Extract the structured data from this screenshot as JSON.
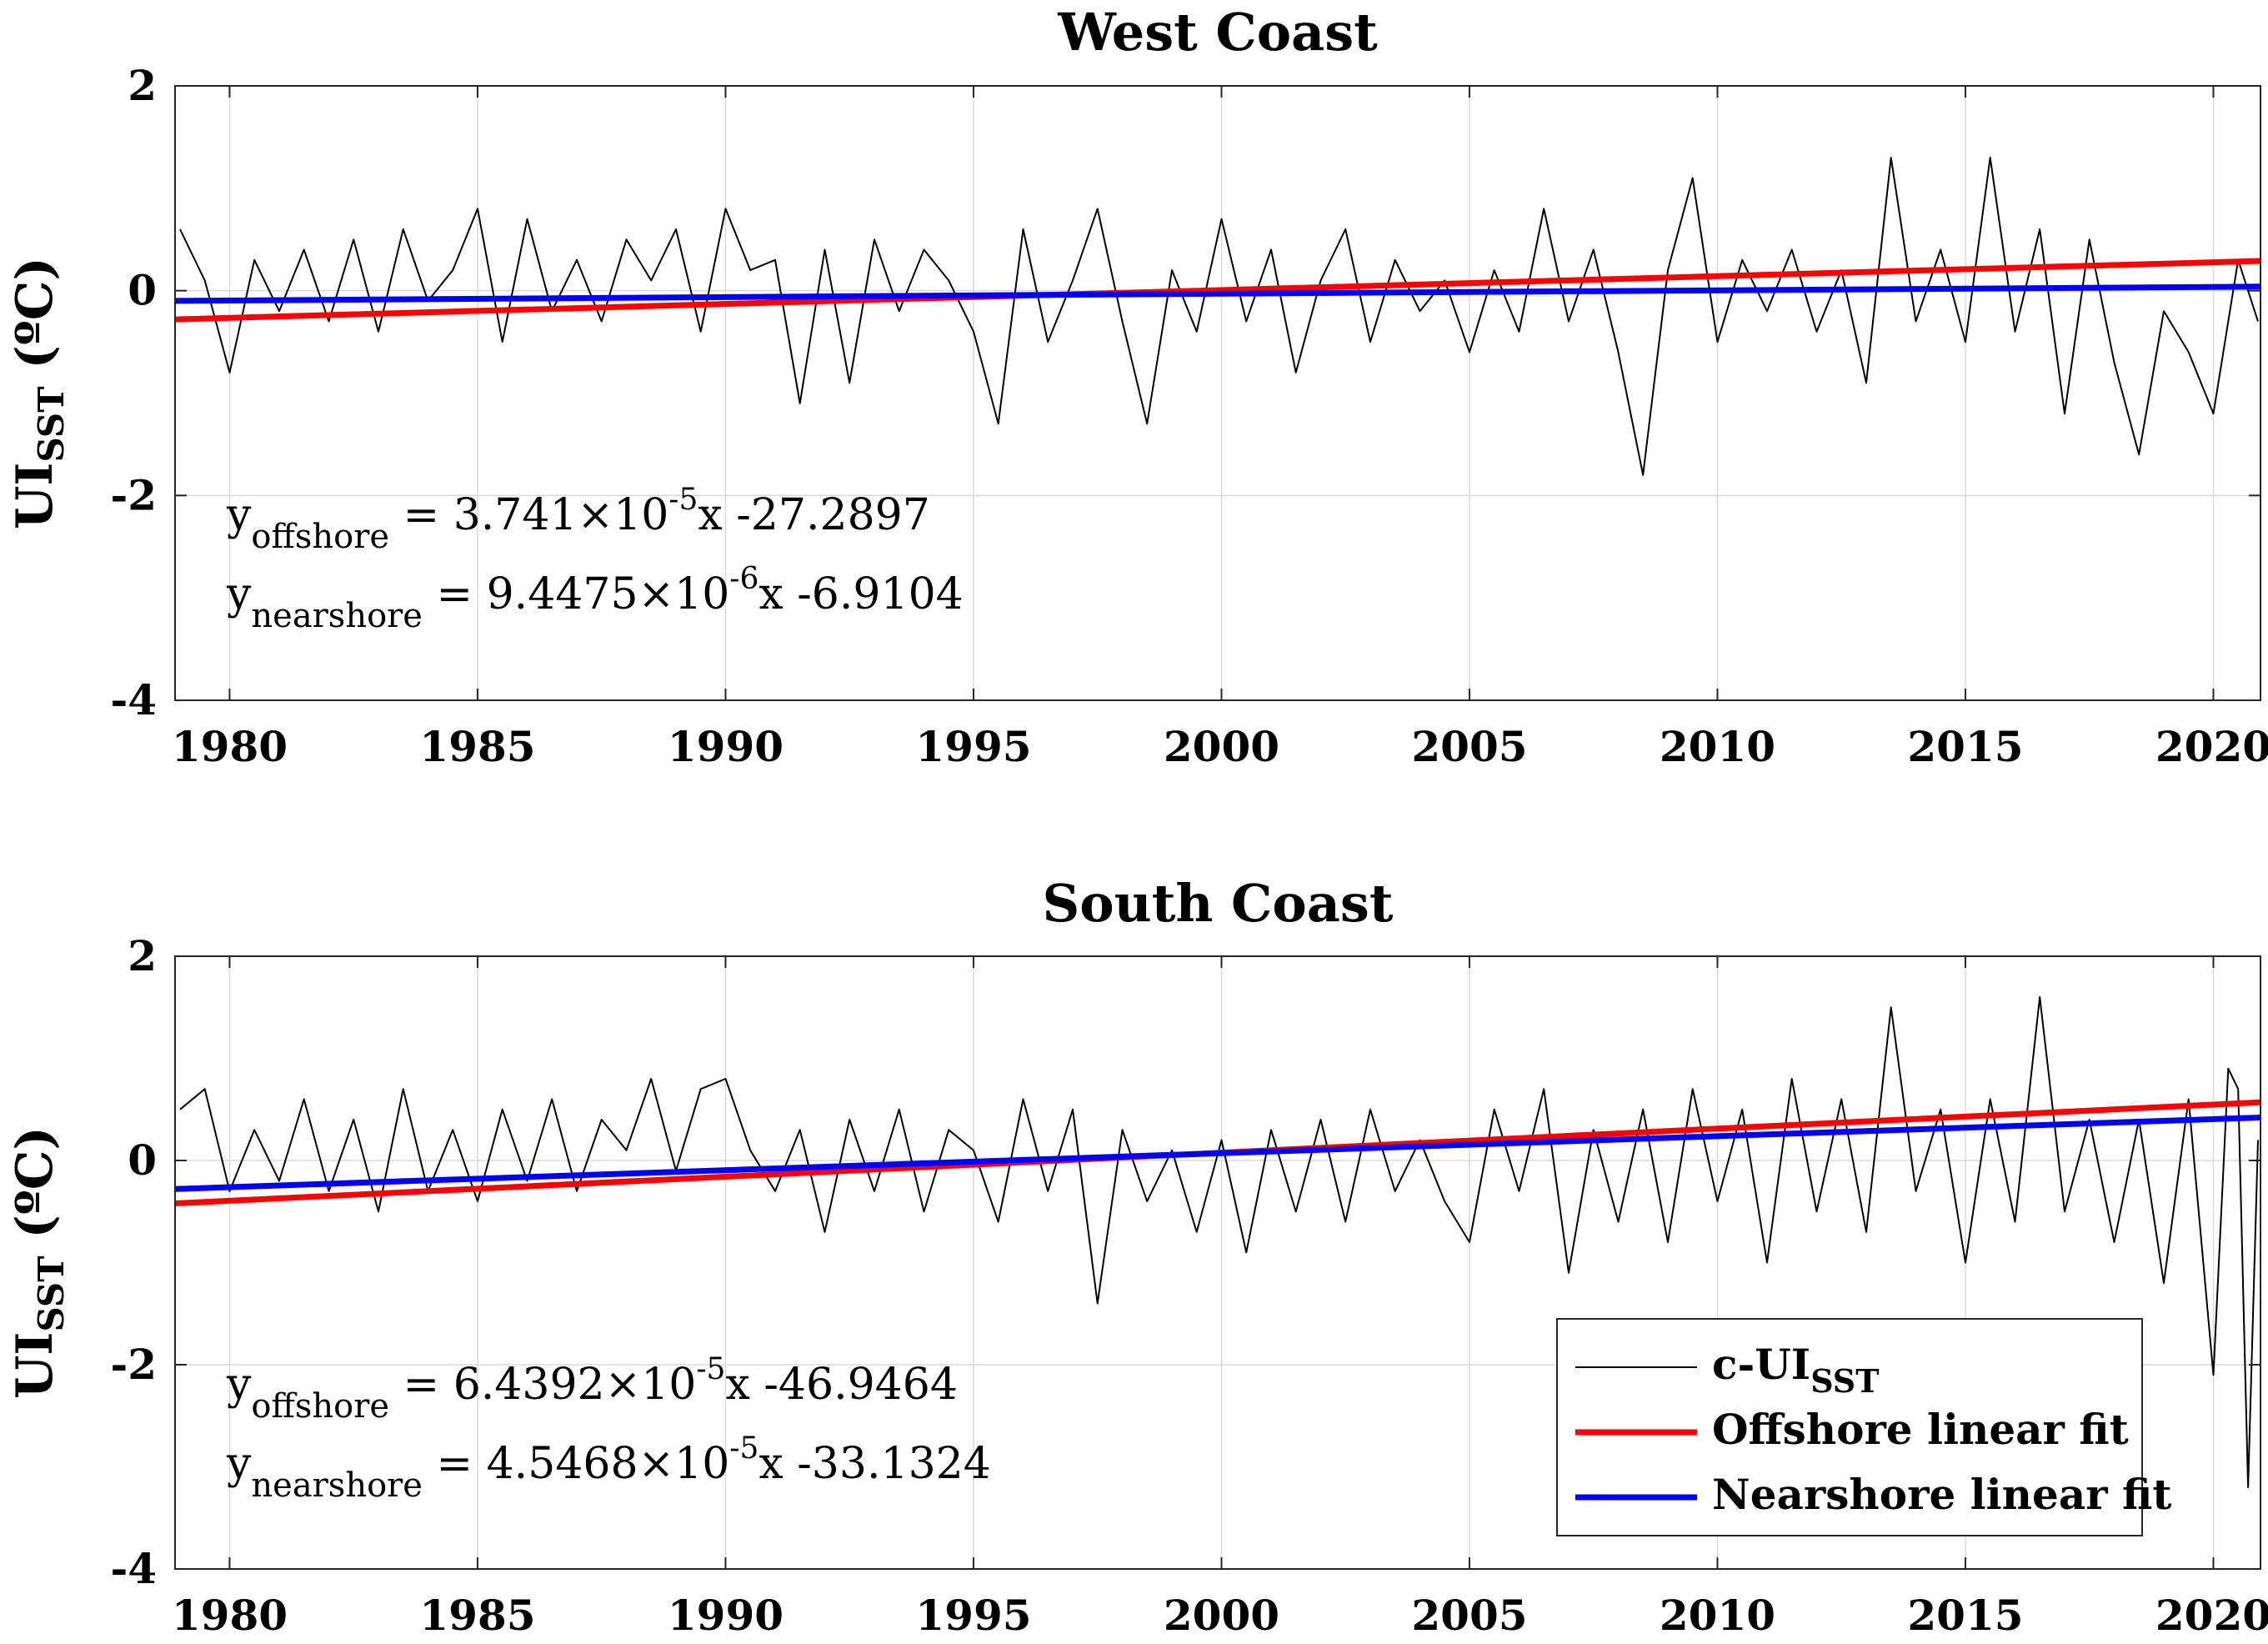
{
  "chart_data": [
    {
      "type": "line",
      "title": "West Coast",
      "ylabel_main": "UI",
      "ylabel_sub": "SST",
      "ylabel_unit": " (ºC)",
      "xlim": [
        1978.9,
        2020.95
      ],
      "ylim": [
        -4,
        2
      ],
      "xticks": [
        1980,
        1985,
        1990,
        1995,
        2000,
        2005,
        2010,
        2015,
        2020
      ],
      "xtick_labels": [
        "1980",
        "1985",
        "1990",
        "1995",
        "2000",
        "2005",
        "2010",
        "2015",
        "2020"
      ],
      "yticks": [
        2,
        0,
        -2,
        -4
      ],
      "ytick_labels": [
        "2",
        "0",
        "-2",
        "-4"
      ],
      "grid": true,
      "series": [
        {
          "name": "c-UISST",
          "color": "#000000",
          "x": [
            1979.0,
            1979.5,
            1980.0,
            1980.5,
            1981.0,
            1981.5,
            1982.0,
            1982.5,
            1983.0,
            1983.5,
            1984.0,
            1984.5,
            1985.0,
            1985.5,
            1986.0,
            1986.5,
            1987.0,
            1987.5,
            1988.0,
            1988.5,
            1989.0,
            1989.5,
            1990.0,
            1990.5,
            1991.0,
            1991.5,
            1992.0,
            1992.5,
            1993.0,
            1993.5,
            1994.0,
            1994.5,
            1995.0,
            1995.5,
            1996.0,
            1996.5,
            1997.0,
            1997.5,
            1998.0,
            1998.5,
            1999.0,
            1999.5,
            2000.0,
            2000.5,
            2001.0,
            2001.5,
            2002.0,
            2002.5,
            2003.0,
            2003.5,
            2004.0,
            2004.5,
            2005.0,
            2005.5,
            2006.0,
            2006.5,
            2007.0,
            2007.5,
            2008.0,
            2008.5,
            2009.0,
            2009.5,
            2010.0,
            2010.5,
            2011.0,
            2011.5,
            2012.0,
            2012.5,
            2013.0,
            2013.5,
            2014.0,
            2014.5,
            2015.0,
            2015.5,
            2016.0,
            2016.5,
            2017.0,
            2017.5,
            2018.0,
            2018.5,
            2019.0,
            2019.5,
            2020.0,
            2020.5,
            2020.9
          ],
          "y": [
            0.6,
            0.1,
            -0.8,
            0.3,
            -0.2,
            0.4,
            -0.3,
            0.5,
            -0.4,
            0.6,
            -0.1,
            0.2,
            0.8,
            -0.5,
            0.7,
            -0.2,
            0.3,
            -0.3,
            0.5,
            0.1,
            0.6,
            -0.4,
            0.8,
            0.2,
            0.3,
            -1.1,
            0.4,
            -0.9,
            0.5,
            -0.2,
            0.4,
            0.1,
            -0.4,
            -1.3,
            0.6,
            -0.5,
            0.1,
            0.8,
            -0.3,
            -1.3,
            0.2,
            -0.4,
            0.7,
            -0.3,
            0.4,
            -0.8,
            0.1,
            0.6,
            -0.5,
            0.3,
            -0.2,
            0.1,
            -0.6,
            0.2,
            -0.4,
            0.8,
            -0.3,
            0.4,
            -0.6,
            -1.8,
            0.2,
            1.1,
            -0.5,
            0.3,
            -0.2,
            0.4,
            -0.4,
            0.2,
            -0.9,
            1.3,
            -0.3,
            0.4,
            -0.5,
            1.3,
            -0.4,
            0.6,
            -1.2,
            0.5,
            -0.7,
            -1.6,
            -0.2,
            -0.6,
            -1.2,
            0.3,
            -0.3
          ]
        },
        {
          "name": "Offshore linear fit",
          "color": "#ff0000",
          "x": [
            1978.9,
            2020.95
          ],
          "y": [
            -0.28,
            0.29
          ]
        },
        {
          "name": "Nearshore linear fit",
          "color": "#0000ff",
          "x": [
            1978.9,
            2020.95
          ],
          "y": [
            -0.1,
            0.04
          ]
        }
      ],
      "equations": [
        {
          "y": "y",
          "sub": "offshore",
          "eq": " = 3.741×10",
          "exp": "-5",
          "rest": "x -27.2897"
        },
        {
          "y": "y",
          "sub": "nearshore",
          "eq": " = 9.4475×10",
          "exp": "-6",
          "rest": "x -6.9104"
        }
      ],
      "legend": null
    },
    {
      "type": "line",
      "title": "South Coast",
      "ylabel_main": "UI",
      "ylabel_sub": "SST",
      "ylabel_unit": " (ºC)",
      "xlim": [
        1978.9,
        2020.95
      ],
      "ylim": [
        -4,
        2
      ],
      "xticks": [
        1980,
        1985,
        1990,
        1995,
        2000,
        2005,
        2010,
        2015,
        2020
      ],
      "xtick_labels": [
        "1980",
        "1985",
        "1990",
        "1995",
        "2000",
        "2005",
        "2010",
        "2015",
        "2020"
      ],
      "yticks": [
        2,
        0,
        -2,
        -4
      ],
      "ytick_labels": [
        "2",
        "0",
        "-2",
        "-4"
      ],
      "grid": true,
      "series": [
        {
          "name": "c-UISST",
          "color": "#000000",
          "x": [
            1979.0,
            1979.5,
            1980.0,
            1980.5,
            1981.0,
            1981.5,
            1982.0,
            1982.5,
            1983.0,
            1983.5,
            1984.0,
            1984.5,
            1985.0,
            1985.5,
            1986.0,
            1986.5,
            1987.0,
            1987.5,
            1988.0,
            1988.5,
            1989.0,
            1989.5,
            1990.0,
            1990.5,
            1991.0,
            1991.5,
            1992.0,
            1992.5,
            1993.0,
            1993.5,
            1994.0,
            1994.5,
            1995.0,
            1995.5,
            1996.0,
            1996.5,
            1997.0,
            1997.5,
            1998.0,
            1998.5,
            1999.0,
            1999.5,
            2000.0,
            2000.5,
            2001.0,
            2001.5,
            2002.0,
            2002.5,
            2003.0,
            2003.5,
            2004.0,
            2004.5,
            2005.0,
            2005.5,
            2006.0,
            2006.5,
            2007.0,
            2007.5,
            2008.0,
            2008.5,
            2009.0,
            2009.5,
            2010.0,
            2010.5,
            2011.0,
            2011.5,
            2012.0,
            2012.5,
            2013.0,
            2013.5,
            2014.0,
            2014.5,
            2015.0,
            2015.5,
            2016.0,
            2016.5,
            2017.0,
            2017.5,
            2018.0,
            2018.5,
            2019.0,
            2019.5,
            2020.0,
            2020.3,
            2020.5,
            2020.7,
            2020.9
          ],
          "y": [
            0.5,
            0.7,
            -0.3,
            0.3,
            -0.2,
            0.6,
            -0.3,
            0.4,
            -0.5,
            0.7,
            -0.3,
            0.3,
            -0.4,
            0.5,
            -0.2,
            0.6,
            -0.3,
            0.4,
            0.1,
            0.8,
            -0.1,
            0.7,
            0.8,
            0.1,
            -0.3,
            0.3,
            -0.7,
            0.4,
            -0.3,
            0.5,
            -0.5,
            0.3,
            0.1,
            -0.6,
            0.6,
            -0.3,
            0.5,
            -1.4,
            0.3,
            -0.4,
            0.1,
            -0.7,
            0.2,
            -0.9,
            0.3,
            -0.5,
            0.4,
            -0.6,
            0.5,
            -0.3,
            0.2,
            -0.4,
            -0.8,
            0.5,
            -0.3,
            0.7,
            -1.1,
            0.3,
            -0.6,
            0.5,
            -0.8,
            0.7,
            -0.4,
            0.5,
            -1.0,
            0.8,
            -0.5,
            0.6,
            -0.7,
            1.5,
            -0.3,
            0.5,
            -1.0,
            0.6,
            -0.6,
            1.6,
            -0.5,
            0.4,
            -0.8,
            0.4,
            -1.2,
            0.6,
            -2.1,
            0.9,
            0.7,
            -3.2,
            0.2
          ]
        },
        {
          "name": "Offshore linear fit",
          "color": "#ff0000",
          "x": [
            1978.9,
            2020.95
          ],
          "y": [
            -0.42,
            0.57
          ]
        },
        {
          "name": "Nearshore linear fit",
          "color": "#0000ff",
          "x": [
            1978.9,
            2020.95
          ],
          "y": [
            -0.28,
            0.42
          ]
        }
      ],
      "equations": [
        {
          "y": "y",
          "sub": "offshore",
          "eq": " = 6.4392×10",
          "exp": "-5",
          "rest": "x -46.9464"
        },
        {
          "y": "y",
          "sub": "nearshore",
          "eq": " = 4.5468×10",
          "exp": "-5",
          "rest": "x -33.1324"
        }
      ],
      "legend": {
        "placement": "bottom-right",
        "entries": [
          {
            "main": "c-UI",
            "sub": "SST",
            "color": "#000000"
          },
          {
            "main": "Offshore linear fit",
            "sub": "",
            "color": "#ff0000"
          },
          {
            "main": "Nearshore linear fit",
            "sub": "",
            "color": "#0000ff"
          }
        ]
      }
    }
  ]
}
